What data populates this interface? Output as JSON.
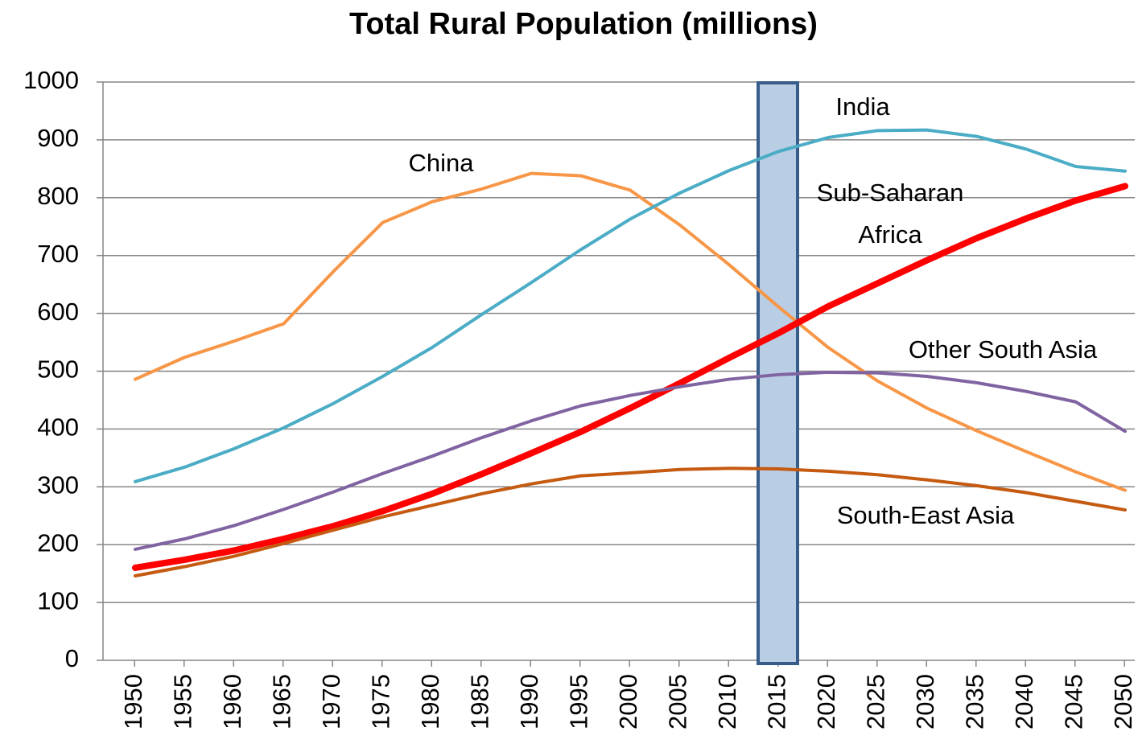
{
  "chart_data": {
    "type": "line",
    "title": "Total Rural Population (millions)",
    "categories": [
      "1950",
      "1955",
      "1960",
      "1965",
      "1970",
      "1975",
      "1980",
      "1985",
      "1990",
      "1995",
      "2000",
      "2005",
      "2010",
      "2015",
      "2020",
      "2025",
      "2030",
      "2035",
      "2040",
      "2045",
      "2050"
    ],
    "series": [
      {
        "name": "China",
        "color": "#f79646",
        "values": [
          486,
          524,
          552,
          582,
          672,
          757,
          793,
          815,
          842,
          838,
          813,
          753,
          684,
          611,
          541,
          483,
          436,
          397,
          361,
          326,
          294
        ]
      },
      {
        "name": "India",
        "color": "#4bacc6",
        "values": [
          309,
          334,
          366,
          402,
          444,
          491,
          541,
          598,
          653,
          710,
          763,
          808,
          847,
          880,
          904,
          916,
          917,
          906,
          884,
          854,
          846
        ]
      },
      {
        "name": "Sub-Saharan Africa",
        "color": "#ff0000",
        "values": [
          160,
          174,
          190,
          210,
          232,
          258,
          288,
          322,
          358,
          395,
          436,
          479,
          523,
          566,
          612,
          652,
          692,
          730,
          764,
          795,
          820
        ]
      },
      {
        "name": "Other South Asia",
        "color": "#8064a2",
        "values": [
          192,
          210,
          233,
          261,
          291,
          323,
          353,
          385,
          414,
          440,
          458,
          473,
          486,
          494,
          498,
          497,
          491,
          480,
          465,
          447,
          396
        ]
      },
      {
        "name": "South-East Asia",
        "color": "#c55a11",
        "values": [
          146,
          162,
          180,
          202,
          225,
          248,
          268,
          288,
          305,
          319,
          324,
          330,
          332,
          331,
          327,
          321,
          312,
          302,
          290,
          275,
          260
        ]
      }
    ],
    "ylim": [
      0,
      1000
    ],
    "yticks": [
      0,
      100,
      200,
      300,
      400,
      500,
      600,
      700,
      800,
      900,
      1000
    ],
    "grid": true
  }
}
